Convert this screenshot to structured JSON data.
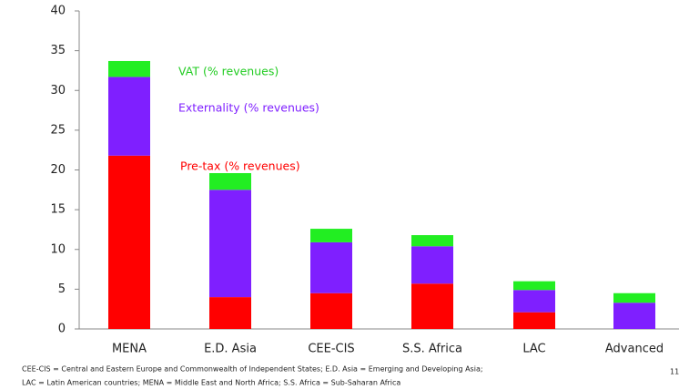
{
  "chart_data": {
    "type": "stacked_bar",
    "categories": [
      "MENA",
      "E.D. Asia",
      "CEE-CIS",
      "S.S. Africa",
      "LAC",
      "Advanced"
    ],
    "series": [
      {
        "name": "Pre-tax (% revenues)",
        "color": "#ff0000",
        "values": [
          21.8,
          4.0,
          4.5,
          5.7,
          2.1,
          0
        ]
      },
      {
        "name": "Externality (% revenues)",
        "color": "#7f1fff",
        "values": [
          9.9,
          13.5,
          6.4,
          4.7,
          2.8,
          3.3
        ]
      },
      {
        "name": "VAT (% revenues)",
        "color": "#22ee22",
        "values": [
          2.0,
          2.1,
          1.7,
          1.4,
          1.1,
          1.2
        ]
      }
    ],
    "ylim": [
      0,
      40
    ],
    "yticks": [
      0,
      5,
      10,
      15,
      20,
      25,
      30,
      35,
      40
    ],
    "footnote": [
      "CEE-CIS = Central and Eastern Europe and Commonwealth of Independent States; E.D. Asia = Emerging and Developing Asia;",
      "LAC = Latin American countries; MENA = Middle East and North Africa; S.S. Africa = Sub-Saharan Africa"
    ],
    "page_number": "11"
  }
}
